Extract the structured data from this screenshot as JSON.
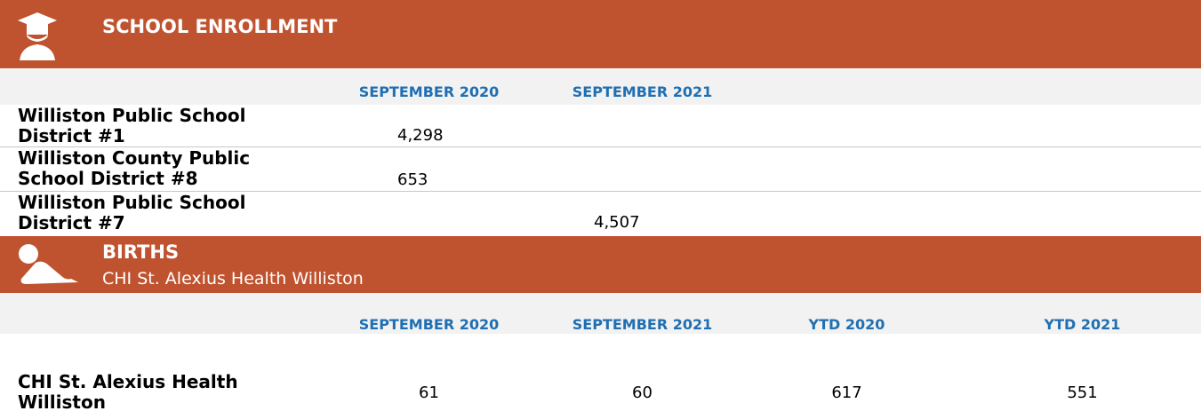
{
  "school_enrollment": {
    "title": "SCHOOL ENROLLMENT",
    "columns": [
      "SEPTEMBER 2020",
      "SEPTEMBER 2021"
    ],
    "rows": [
      {
        "label": "Williston Public School District #1",
        "september_2020": "4,298"
      },
      {
        "label": "Williston County Public School District #8",
        "september_2020": "653"
      },
      {
        "label": "Williston Public School District #7",
        "september_2021": "4,507"
      }
    ]
  },
  "births": {
    "title": "BIRTHS",
    "subtitle": "CHI St. Alexius Health Williston",
    "columns": [
      "SEPTEMBER 2020",
      "SEPTEMBER 2021",
      "YTD 2020",
      "YTD 2021"
    ],
    "rows": [
      {
        "label": "CHI St. Alexius Health Williston",
        "values": [
          "61",
          "60",
          "617",
          "551"
        ]
      }
    ]
  }
}
